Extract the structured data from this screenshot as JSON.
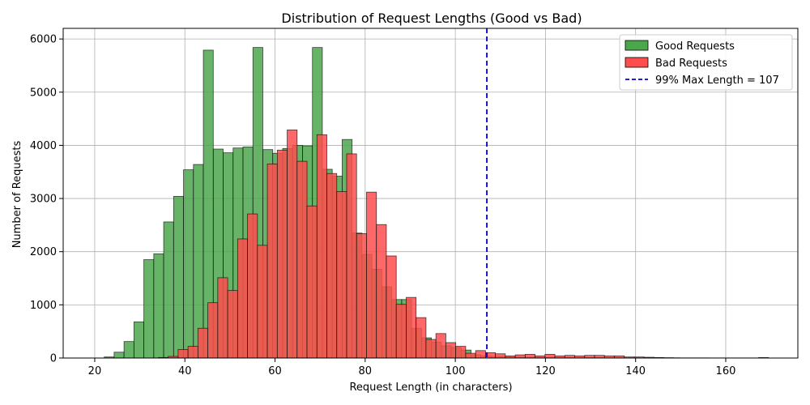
{
  "chart_data": {
    "type": "bar",
    "title": "Distribution of Request Lengths (Good vs Bad)",
    "xlabel": "Request Length (in characters)",
    "ylabel": "Number of Requests",
    "xlim": [
      13,
      176
    ],
    "ylim": [
      0,
      6200
    ],
    "xticks": [
      20,
      40,
      60,
      80,
      100,
      120,
      140,
      160
    ],
    "yticks": [
      0,
      1000,
      2000,
      3000,
      4000,
      5000,
      6000
    ],
    "grid": true,
    "legend_position": "top-right",
    "bin_width": 2.2,
    "series": [
      {
        "name": "Good Requests",
        "color": "#4ca64c",
        "bin_start": 22.1,
        "counts": [
          20,
          110,
          310,
          680,
          1850,
          1960,
          2560,
          3040,
          3540,
          3640,
          5790,
          3930,
          3860,
          3950,
          3970,
          5840,
          3920,
          3850,
          3940,
          4000,
          3990,
          5840,
          3550,
          3420,
          4110,
          2350,
          1950,
          1670,
          1340,
          1100,
          1100,
          560,
          380,
          300,
          230,
          200,
          150,
          60,
          40,
          30,
          30,
          20,
          15,
          15,
          10,
          10,
          10,
          8,
          8,
          8,
          6,
          6,
          5,
          5,
          5,
          4,
          4,
          4,
          3,
          3,
          3,
          2,
          2,
          2,
          2,
          2,
          10
        ]
      },
      {
        "name": "Bad Requests",
        "color": "#ff4d4d",
        "bin_start": 34.1,
        "counts": [
          10,
          30,
          160,
          220,
          560,
          1040,
          1510,
          1270,
          2240,
          2710,
          2120,
          3650,
          3910,
          4290,
          3700,
          2860,
          4200,
          3470,
          3130,
          3840,
          2340,
          3120,
          2510,
          1920,
          1010,
          1140,
          760,
          350,
          460,
          290,
          220,
          90,
          140,
          100,
          80,
          40,
          60,
          70,
          40,
          70,
          40,
          50,
          40,
          50,
          50,
          40,
          40,
          20,
          20,
          15,
          10,
          5
        ]
      }
    ],
    "reference_line": {
      "x": 107,
      "label": "99% Max Length = 107",
      "color": "#0000cc",
      "style": "dashed"
    }
  }
}
